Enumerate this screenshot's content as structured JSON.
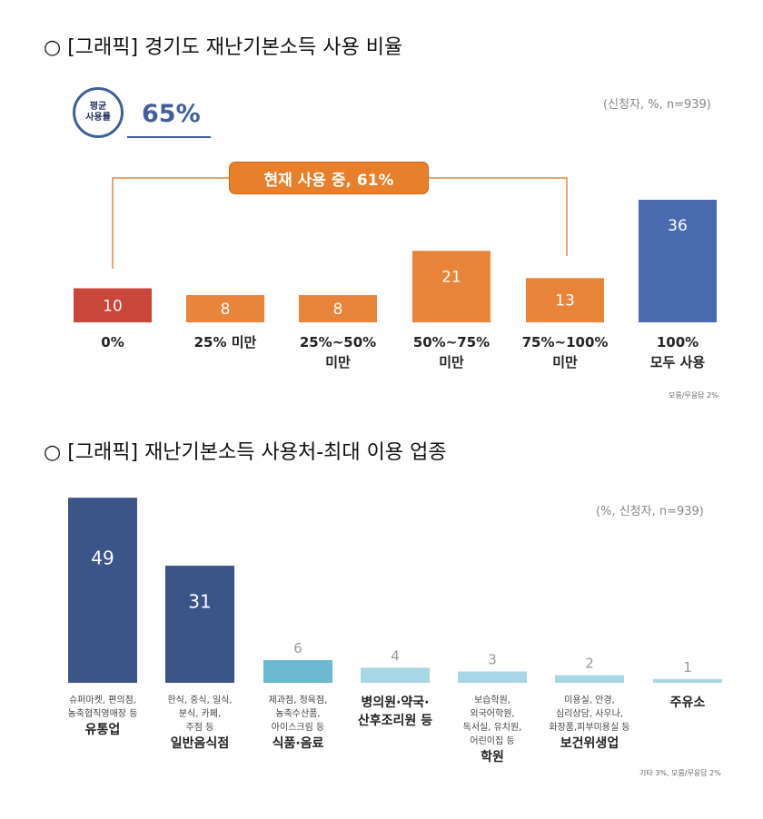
{
  "chart_data": [
    {
      "type": "bar",
      "title": "○ [그래픽] 경기도 재난기본소득 사용 비율",
      "subtitle": "(신청자, %, n=939)",
      "badge": [
        "평균",
        "사용률"
      ],
      "average": "65%",
      "bracket_label": "현재 사용 중, 61%",
      "categories": [
        [
          "0%"
        ],
        [
          "25% 미만"
        ],
        [
          "25%~50%",
          "미만"
        ],
        [
          "50%~75%",
          "미만"
        ],
        [
          "75%~100%",
          "미만"
        ],
        [
          "100%",
          "모두 사용"
        ]
      ],
      "values": [
        10,
        8,
        8,
        21,
        13,
        36
      ],
      "colors": [
        "#c9463a",
        "#e8853a",
        "#e8853a",
        "#e8853a",
        "#e8853a",
        "#4a6bb0"
      ],
      "footnote": "모름/무응답 2%"
    },
    {
      "type": "bar",
      "title": "○ [그래픽] 재난기본소득 사용처-최대 이용 업종",
      "subtitle": "(%, 신청자, n=939)",
      "categories": [
        {
          "detail": [
            "슈퍼마켓, 편의점,",
            "농축협직영매장 등"
          ],
          "name": "유통업"
        },
        {
          "detail": [
            "한식, 중식, 일식,",
            "분식, 카페,",
            "주점 등"
          ],
          "name": "일반음식점"
        },
        {
          "detail": [
            "제과점, 정육점,",
            "농축수산품,",
            "아이스크림 등"
          ],
          "name": "식품·음료"
        },
        {
          "detail": [],
          "name": "병의원·약국·\n산후조리원 등"
        },
        {
          "detail": [
            "보습학원,",
            "외국어학원,",
            "독서실, 유치원,",
            "어린이집 등"
          ],
          "name": "학원"
        },
        {
          "detail": [
            "미용실, 안경,",
            "심리상담, 사우나,",
            "화장품,피부미용실 등"
          ],
          "name": "보건위생업"
        },
        {
          "detail": [],
          "name": "주유소"
        }
      ],
      "values": [
        49,
        31,
        6,
        4,
        3,
        2,
        1
      ],
      "colors": [
        "#3b5589",
        "#3b5589",
        "#6bb8d1",
        "#a9d6e5",
        "#a9d6e5",
        "#a9d6e5",
        "#a9d6e5"
      ],
      "footnote": "기타 3%, 모름/무응답 2%"
    }
  ]
}
